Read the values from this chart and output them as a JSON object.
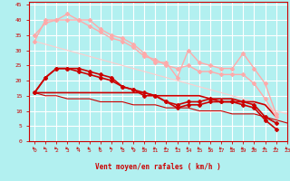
{
  "background_color": "#b2f0f0",
  "grid_color": "#ffffff",
  "xlabel": "Vent moyen/en rafales ( km/h )",
  "xlabel_color": "#cc0000",
  "tick_color": "#cc0000",
  "xlim": [
    -0.5,
    23
  ],
  "ylim": [
    0,
    46
  ],
  "xticks": [
    0,
    1,
    2,
    3,
    4,
    5,
    6,
    7,
    8,
    9,
    10,
    11,
    12,
    13,
    14,
    15,
    16,
    17,
    18,
    19,
    20,
    21,
    22,
    23
  ],
  "yticks": [
    0,
    5,
    10,
    15,
    20,
    25,
    30,
    35,
    40,
    45
  ],
  "series": [
    {
      "x": [
        0,
        1,
        2,
        3,
        4,
        5,
        6,
        7,
        8,
        9,
        10,
        11,
        12,
        13,
        14,
        15,
        16,
        17,
        18,
        19,
        20,
        21,
        22,
        23
      ],
      "y": [
        33,
        40,
        40,
        42,
        40,
        40,
        37,
        35,
        34,
        32,
        29,
        26,
        26,
        21,
        30,
        26,
        25,
        24,
        24,
        29,
        24,
        19,
        9,
        null
      ],
      "color": "#ffaaaa",
      "marker": "D",
      "markersize": 2.0,
      "linewidth": 1.0
    },
    {
      "x": [
        0,
        1,
        2,
        3,
        4,
        5,
        6,
        7,
        8,
        9,
        10,
        11,
        12,
        13,
        14,
        15,
        16,
        17,
        18,
        19,
        20,
        21,
        22,
        23
      ],
      "y": [
        35,
        39,
        40,
        40,
        40,
        38,
        36,
        34,
        33,
        31,
        28,
        27,
        25,
        24,
        25,
        23,
        23,
        22,
        22,
        22,
        19,
        14,
        8,
        null
      ],
      "color": "#ffaaaa",
      "marker": "D",
      "markersize": 2.0,
      "linewidth": 1.0
    },
    {
      "x": [
        0,
        1,
        2,
        3,
        4,
        5,
        6,
        7,
        8,
        9,
        10,
        11,
        12,
        13,
        14,
        15,
        16,
        17,
        18,
        19,
        20,
        21,
        22,
        23
      ],
      "y": [
        33,
        32,
        31,
        30,
        29,
        28,
        27,
        26,
        25,
        24,
        23,
        22,
        21,
        20,
        19,
        18,
        17,
        16,
        15,
        14,
        13,
        12,
        10,
        9
      ],
      "color": "#ffcccc",
      "marker": null,
      "markersize": 0,
      "linewidth": 0.8
    },
    {
      "x": [
        0,
        1,
        2,
        3,
        4,
        5,
        6,
        7,
        8,
        9,
        10,
        11,
        12,
        13,
        14,
        15,
        16,
        17,
        18,
        19,
        20,
        21,
        22,
        23
      ],
      "y": [
        16,
        21,
        24,
        24,
        24,
        23,
        22,
        21,
        18,
        17,
        16,
        15,
        13,
        12,
        13,
        13,
        14,
        13,
        13,
        13,
        12,
        8,
        6,
        null
      ],
      "color": "#cc0000",
      "marker": "D",
      "markersize": 2.0,
      "linewidth": 1.2
    },
    {
      "x": [
        0,
        1,
        2,
        3,
        4,
        5,
        6,
        7,
        8,
        9,
        10,
        11,
        12,
        13,
        14,
        15,
        16,
        17,
        18,
        19,
        20,
        21,
        22,
        23
      ],
      "y": [
        16,
        21,
        24,
        24,
        23,
        22,
        21,
        20,
        18,
        17,
        15,
        15,
        13,
        11,
        12,
        12,
        13,
        13,
        13,
        12,
        11,
        7,
        4,
        null
      ],
      "color": "#cc0000",
      "marker": "D",
      "markersize": 2.0,
      "linewidth": 1.2
    },
    {
      "x": [
        0,
        1,
        2,
        3,
        4,
        5,
        6,
        7,
        8,
        9,
        10,
        11,
        12,
        13,
        14,
        15,
        16,
        17,
        18,
        19,
        20,
        21,
        22,
        23
      ],
      "y": [
        16,
        16,
        16,
        16,
        16,
        16,
        16,
        16,
        16,
        16,
        16,
        15,
        15,
        15,
        15,
        15,
        14,
        14,
        14,
        13,
        13,
        12,
        8,
        null
      ],
      "color": "#cc0000",
      "marker": null,
      "markersize": 0,
      "linewidth": 1.2
    },
    {
      "x": [
        0,
        1,
        2,
        3,
        4,
        5,
        6,
        7,
        8,
        9,
        10,
        11,
        12,
        13,
        14,
        15,
        16,
        17,
        18,
        19,
        20,
        21,
        22,
        23
      ],
      "y": [
        16,
        15,
        15,
        14,
        14,
        14,
        13,
        13,
        13,
        12,
        12,
        12,
        11,
        11,
        11,
        10,
        10,
        10,
        9,
        9,
        9,
        8,
        7,
        6
      ],
      "color": "#cc0000",
      "marker": null,
      "markersize": 0,
      "linewidth": 0.8
    }
  ],
  "arrow_color": "#cc0000"
}
